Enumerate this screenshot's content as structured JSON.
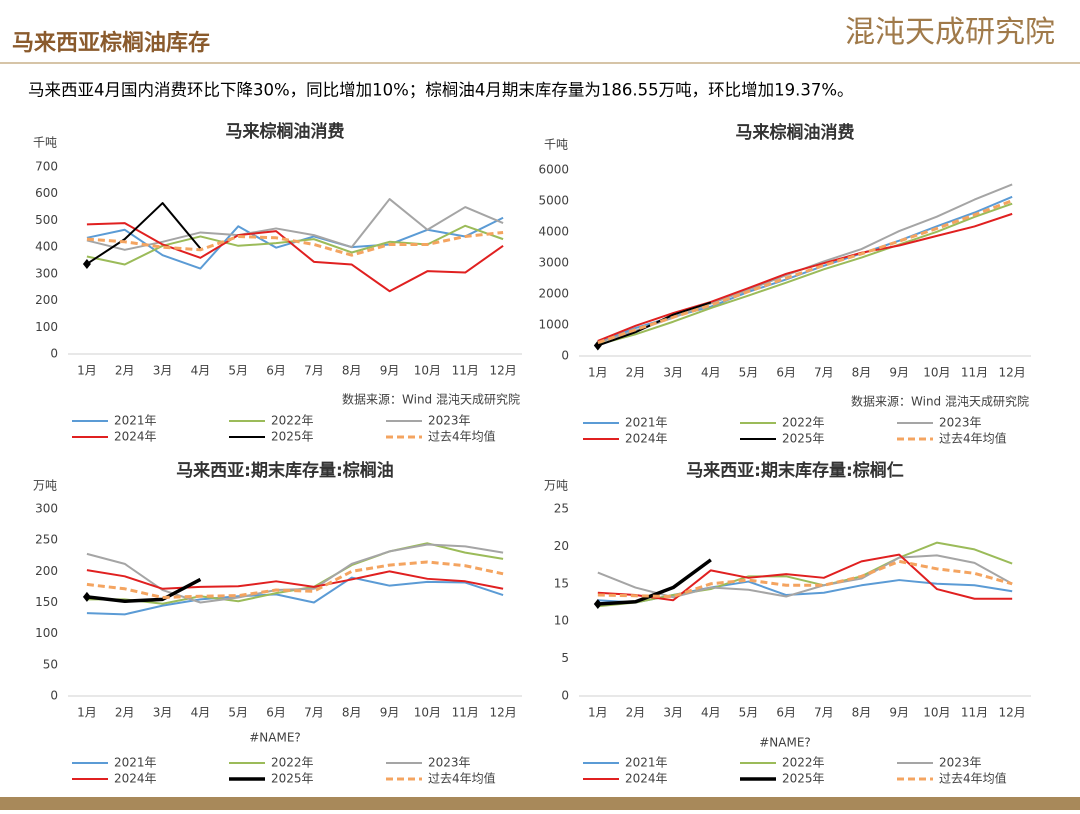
{
  "header": {
    "title": "马来西亚棕榈油库存",
    "logo": "混沌天成研究院",
    "summary": "马来西亚4月国内消费环比下降30%，同比增加10%；棕榈油4月期末库存量为186.55万吨，环比增加19.37%。"
  },
  "chart_data": [
    {
      "type": "line",
      "title": "马来棕榈油消费",
      "unit": "千吨",
      "source": "数据来源：Wind  混沌天成研究院",
      "categories": [
        "1月",
        "2月",
        "3月",
        "4月",
        "5月",
        "6月",
        "7月",
        "8月",
        "9月",
        "10月",
        "11月",
        "12月"
      ],
      "ylim": [
        0,
        700
      ],
      "yticks": [
        0,
        100,
        200,
        300,
        400,
        500,
        600,
        700
      ],
      "series": [
        {
          "name": "2021年",
          "color": "#5b9bd5",
          "values": [
            435,
            465,
            370,
            320,
            478,
            398,
            440,
            400,
            410,
            465,
            440,
            510
          ]
        },
        {
          "name": "2022年",
          "color": "#9bbb59",
          "values": [
            365,
            335,
            405,
            440,
            405,
            415,
            430,
            380,
            420,
            410,
            480,
            430
          ]
        },
        {
          "name": "2023年",
          "color": "#a5a5a5",
          "values": [
            425,
            390,
            420,
            455,
            445,
            470,
            445,
            400,
            580,
            465,
            550,
            490
          ]
        },
        {
          "name": "2024年",
          "color": "#e02020",
          "values": [
            485,
            490,
            410,
            360,
            445,
            460,
            345,
            335,
            235,
            310,
            305,
            405
          ]
        },
        {
          "name": "2025年",
          "color": "#000000",
          "values": [
            337,
            430,
            565,
            395,
            null,
            null,
            null,
            null,
            null,
            null,
            null,
            null
          ]
        },
        {
          "name": "过去4年均值",
          "color": "#f4a460",
          "dashed": true,
          "values": [
            430,
            420,
            400,
            390,
            440,
            435,
            410,
            370,
            410,
            410,
            440,
            455
          ]
        }
      ]
    },
    {
      "type": "line",
      "title": "马来棕榈油消费",
      "unit": "千吨",
      "source": "数据来源：Wind  混沌天成研究院",
      "categories": [
        "1月",
        "2月",
        "3月",
        "4月",
        "5月",
        "6月",
        "7月",
        "8月",
        "9月",
        "10月",
        "11月",
        "12月"
      ],
      "ylim": [
        0,
        6000
      ],
      "yticks": [
        0,
        1000,
        2000,
        3000,
        4000,
        5000,
        6000
      ],
      "series": [
        {
          "name": "2021年",
          "color": "#5b9bd5",
          "values": [
            435,
            900,
            1270,
            1590,
            2070,
            2470,
            2910,
            3310,
            3720,
            4185,
            4625,
            5135
          ]
        },
        {
          "name": "2022年",
          "color": "#9bbb59",
          "values": [
            365,
            700,
            1105,
            1545,
            1950,
            2365,
            2795,
            3175,
            3595,
            4005,
            4485,
            4915
          ]
        },
        {
          "name": "2023年",
          "color": "#a5a5a5",
          "values": [
            425,
            815,
            1235,
            1690,
            2135,
            2605,
            3050,
            3450,
            4030,
            4495,
            5045,
            5535
          ]
        },
        {
          "name": "2024年",
          "color": "#e02020",
          "values": [
            485,
            975,
            1385,
            1745,
            2190,
            2650,
            2995,
            3330,
            3565,
            3875,
            4180,
            4585
          ]
        },
        {
          "name": "2025年",
          "color": "#000000",
          "values": [
            337,
            767,
            1332,
            1727,
            null,
            null,
            null,
            null,
            null,
            null,
            null,
            null
          ]
        },
        {
          "name": "过去4年均值",
          "color": "#f4a460",
          "dashed": true,
          "values": [
            430,
            850,
            1250,
            1640,
            2080,
            2515,
            2925,
            3295,
            3705,
            4115,
            4555,
            5010
          ]
        }
      ]
    },
    {
      "type": "line",
      "title": "马来西亚:期末库存量:棕榈油",
      "unit": "万吨",
      "xlabel": "#NAME?",
      "categories": [
        "1月",
        "2月",
        "3月",
        "4月",
        "5月",
        "6月",
        "7月",
        "8月",
        "9月",
        "10月",
        "11月",
        "12月"
      ],
      "ylim": [
        0,
        300
      ],
      "yticks": [
        0,
        50,
        100,
        150,
        200,
        250,
        300
      ],
      "series": [
        {
          "name": "2021年",
          "color": "#5b9bd5",
          "values": [
            133,
            131,
            145,
            155,
            160,
            163,
            150,
            190,
            177,
            183,
            182,
            162
          ]
        },
        {
          "name": "2022年",
          "color": "#9bbb59",
          "values": [
            155,
            155,
            148,
            160,
            152,
            165,
            175,
            210,
            232,
            245,
            230,
            220
          ]
        },
        {
          "name": "2023年",
          "color": "#a5a5a5",
          "values": [
            228,
            212,
            170,
            150,
            158,
            170,
            172,
            212,
            232,
            243,
            240,
            230
          ]
        },
        {
          "name": "2024年",
          "color": "#e02020",
          "values": [
            202,
            192,
            172,
            175,
            176,
            184,
            175,
            187,
            200,
            188,
            184,
            172
          ]
        },
        {
          "name": "2025年",
          "color": "#000000",
          "values": [
            159,
            152,
            155,
            187,
            null,
            null,
            null,
            null,
            null,
            null,
            null,
            null
          ]
        },
        {
          "name": "过去4年均值",
          "color": "#f4a460",
          "dashed": true,
          "values": [
            179,
            172,
            158,
            160,
            161,
            170,
            168,
            200,
            210,
            215,
            209,
            196
          ]
        }
      ]
    },
    {
      "type": "line",
      "title": "马来西亚:期末库存量:棕榈仁",
      "unit": "万吨",
      "xlabel": "#NAME?",
      "categories": [
        "1月",
        "2月",
        "3月",
        "4月",
        "5月",
        "6月",
        "7月",
        "8月",
        "9月",
        "10月",
        "11月",
        "12月"
      ],
      "ylim": [
        0,
        25
      ],
      "yticks": [
        0,
        5,
        10,
        15,
        20,
        25
      ],
      "series": [
        {
          "name": "2021年",
          "color": "#5b9bd5",
          "values": [
            12.8,
            12.5,
            13.5,
            14.5,
            15.3,
            13.5,
            13.8,
            14.8,
            15.5,
            15,
            14.8,
            14
          ]
        },
        {
          "name": "2022年",
          "color": "#9bbb59",
          "values": [
            12,
            12.5,
            13.5,
            14.3,
            16,
            16,
            14.8,
            16,
            18.5,
            20.5,
            19.6,
            17.7
          ]
        },
        {
          "name": "2023年",
          "color": "#a5a5a5",
          "values": [
            16.5,
            14.5,
            13.2,
            14.5,
            14.2,
            13.3,
            14.8,
            15.7,
            18.5,
            18.8,
            17.8,
            15
          ]
        },
        {
          "name": "2024年",
          "color": "#e02020",
          "values": [
            13.8,
            13.5,
            12.8,
            16.8,
            15.8,
            16.3,
            15.8,
            18,
            18.9,
            14.3,
            13,
            13
          ]
        },
        {
          "name": "2025年",
          "color": "#000000",
          "values": [
            12.3,
            12.6,
            14.5,
            18.2,
            null,
            null,
            null,
            null,
            null,
            null,
            null,
            null
          ]
        },
        {
          "name": "过去4年均值",
          "color": "#f4a460",
          "dashed": true,
          "values": [
            13.5,
            13.4,
            13.3,
            15,
            15.5,
            14.8,
            14.8,
            16,
            18,
            17,
            16.4,
            15
          ]
        }
      ]
    }
  ]
}
